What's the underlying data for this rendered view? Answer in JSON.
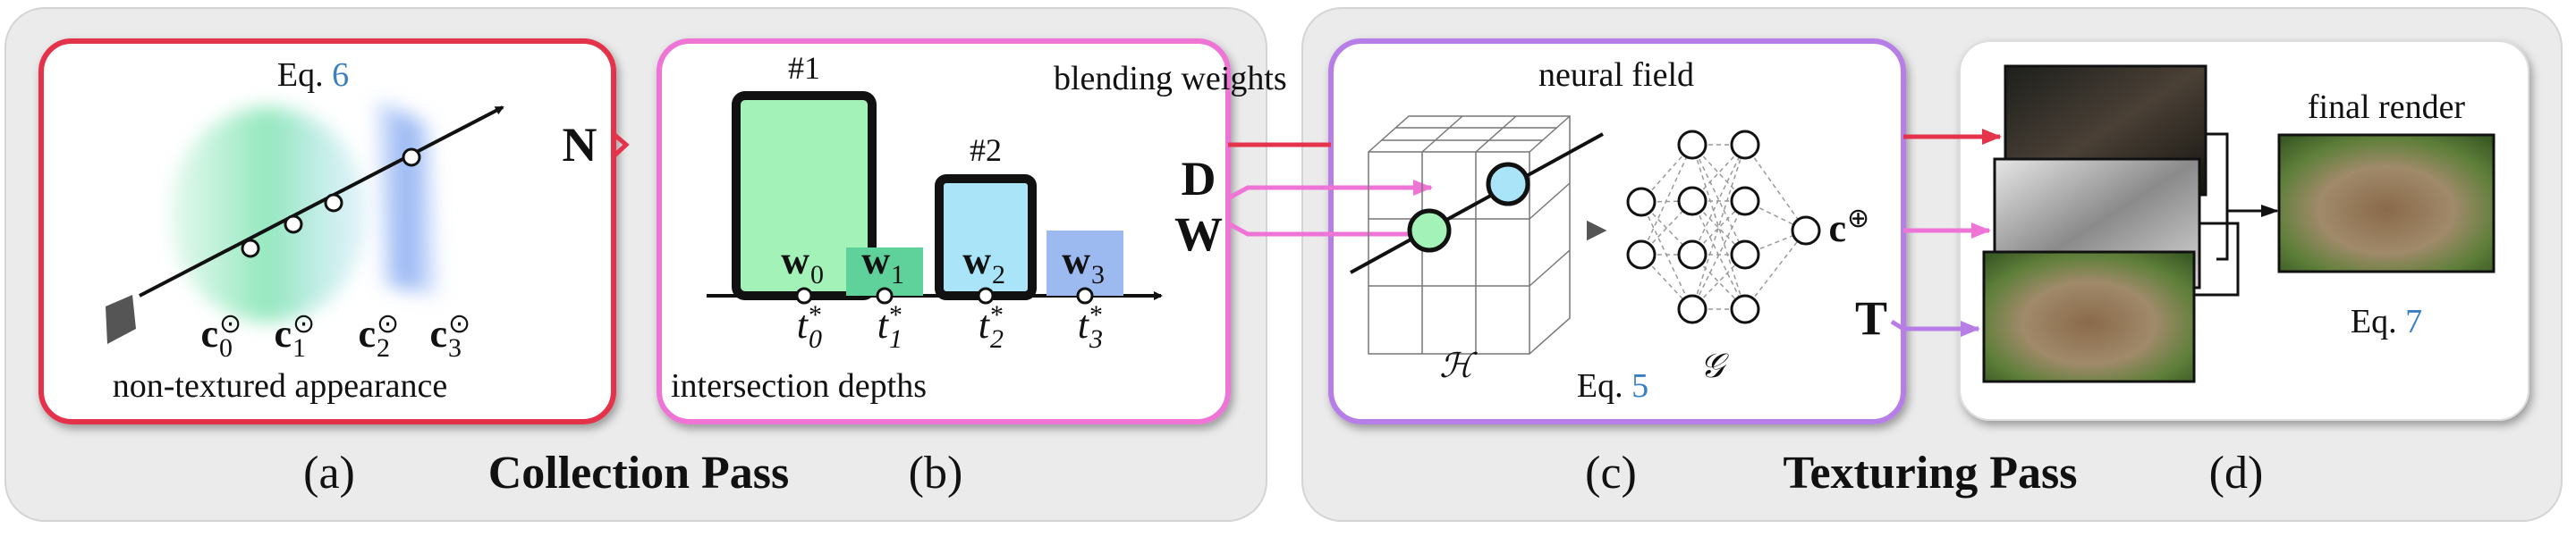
{
  "sections": {
    "collection": "Collection Pass",
    "texturing": "Texturing Pass"
  },
  "panel_a": {
    "caption": "(a)",
    "eq_prefix": "Eq.",
    "eq_ref": "6",
    "label": "non-textured appearance",
    "colors": [
      {
        "base": "c",
        "sub": "0",
        "sup": "⊙"
      },
      {
        "base": "c",
        "sub": "1",
        "sup": "⊙"
      },
      {
        "base": "c",
        "sub": "2",
        "sup": "⊙"
      },
      {
        "base": "c",
        "sub": "3",
        "sup": "⊙"
      }
    ]
  },
  "n_label": "N",
  "panel_b": {
    "caption": "(b)",
    "title": "blending weights",
    "bottom": "intersection depths",
    "bars": [
      {
        "rank": "#1",
        "weight": {
          "base": "w",
          "sub": "0"
        },
        "depth": {
          "base": "t",
          "sub": "0",
          "sup": "*"
        }
      },
      {
        "weight": {
          "base": "w",
          "sub": "1"
        },
        "depth": {
          "base": "t",
          "sub": "1",
          "sup": "*"
        }
      },
      {
        "rank": "#2",
        "weight": {
          "base": "w",
          "sub": "2"
        },
        "depth": {
          "base": "t",
          "sub": "2",
          "sup": "*"
        }
      },
      {
        "weight": {
          "base": "w",
          "sub": "3"
        },
        "depth": {
          "base": "t",
          "sub": "3",
          "sup": "*"
        }
      }
    ]
  },
  "d_label": "D",
  "w_label": "W",
  "panel_c": {
    "caption": "(c)",
    "title": "neural field",
    "grid_symbol": "ℋ",
    "net_symbol": "𝒢",
    "eq_prefix": "Eq.",
    "eq_ref": "5",
    "output": {
      "base": "c",
      "sup": "⊕"
    }
  },
  "t_label": "T",
  "panel_d": {
    "caption": "(d)",
    "title": "final render",
    "eq_prefix": "Eq.",
    "eq_ref": "7"
  }
}
